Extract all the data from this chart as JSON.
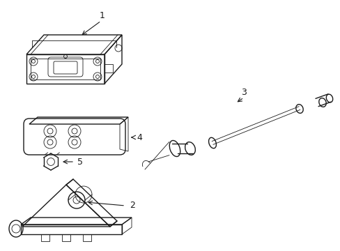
{
  "background_color": "#ffffff",
  "line_color": "#1a1a1a",
  "lw": 1.0,
  "tlw": 0.6
}
